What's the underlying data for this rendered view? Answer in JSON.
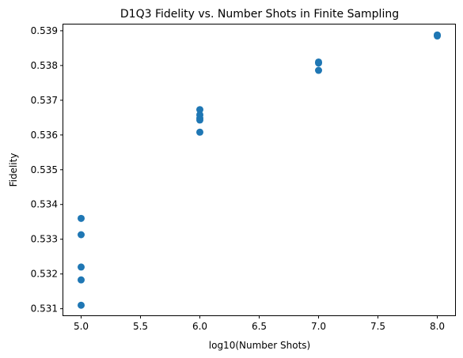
{
  "chart_data": {
    "type": "scatter",
    "title": "D1Q3 Fidelity vs. Number Shots in Finite Sampling",
    "xlabel": "log10(Number Shots)",
    "ylabel": "Fidelity",
    "xlim": [
      4.85,
      8.15
    ],
    "ylim": [
      0.53081,
      0.53918
    ],
    "xticks": [
      5.0,
      5.5,
      6.0,
      6.5,
      7.0,
      7.5,
      8.0
    ],
    "xtick_labels": [
      "5.0",
      "5.5",
      "6.0",
      "6.5",
      "7.0",
      "7.5",
      "8.0"
    ],
    "yticks": [
      0.531,
      0.532,
      0.533,
      0.534,
      0.535,
      0.536,
      0.537,
      0.538,
      0.539
    ],
    "ytick_labels": [
      "0.531",
      "0.532",
      "0.533",
      "0.534",
      "0.535",
      "0.536",
      "0.537",
      "0.538",
      "0.539"
    ],
    "grid": false,
    "series": [
      {
        "color": "#1f77b4",
        "points": [
          [
            5.0,
            0.5336
          ],
          [
            5.0,
            0.53313
          ],
          [
            5.0,
            0.5322
          ],
          [
            5.0,
            0.53183
          ],
          [
            5.0,
            0.5311
          ],
          [
            6.0,
            0.53673
          ],
          [
            6.0,
            0.53658
          ],
          [
            6.0,
            0.53648
          ],
          [
            6.0,
            0.53643
          ],
          [
            6.0,
            0.53608
          ],
          [
            7.0,
            0.5381
          ],
          [
            7.0,
            0.53807
          ],
          [
            7.0,
            0.53786
          ],
          [
            8.0,
            0.53888
          ],
          [
            8.0,
            0.53885
          ]
        ]
      }
    ]
  }
}
